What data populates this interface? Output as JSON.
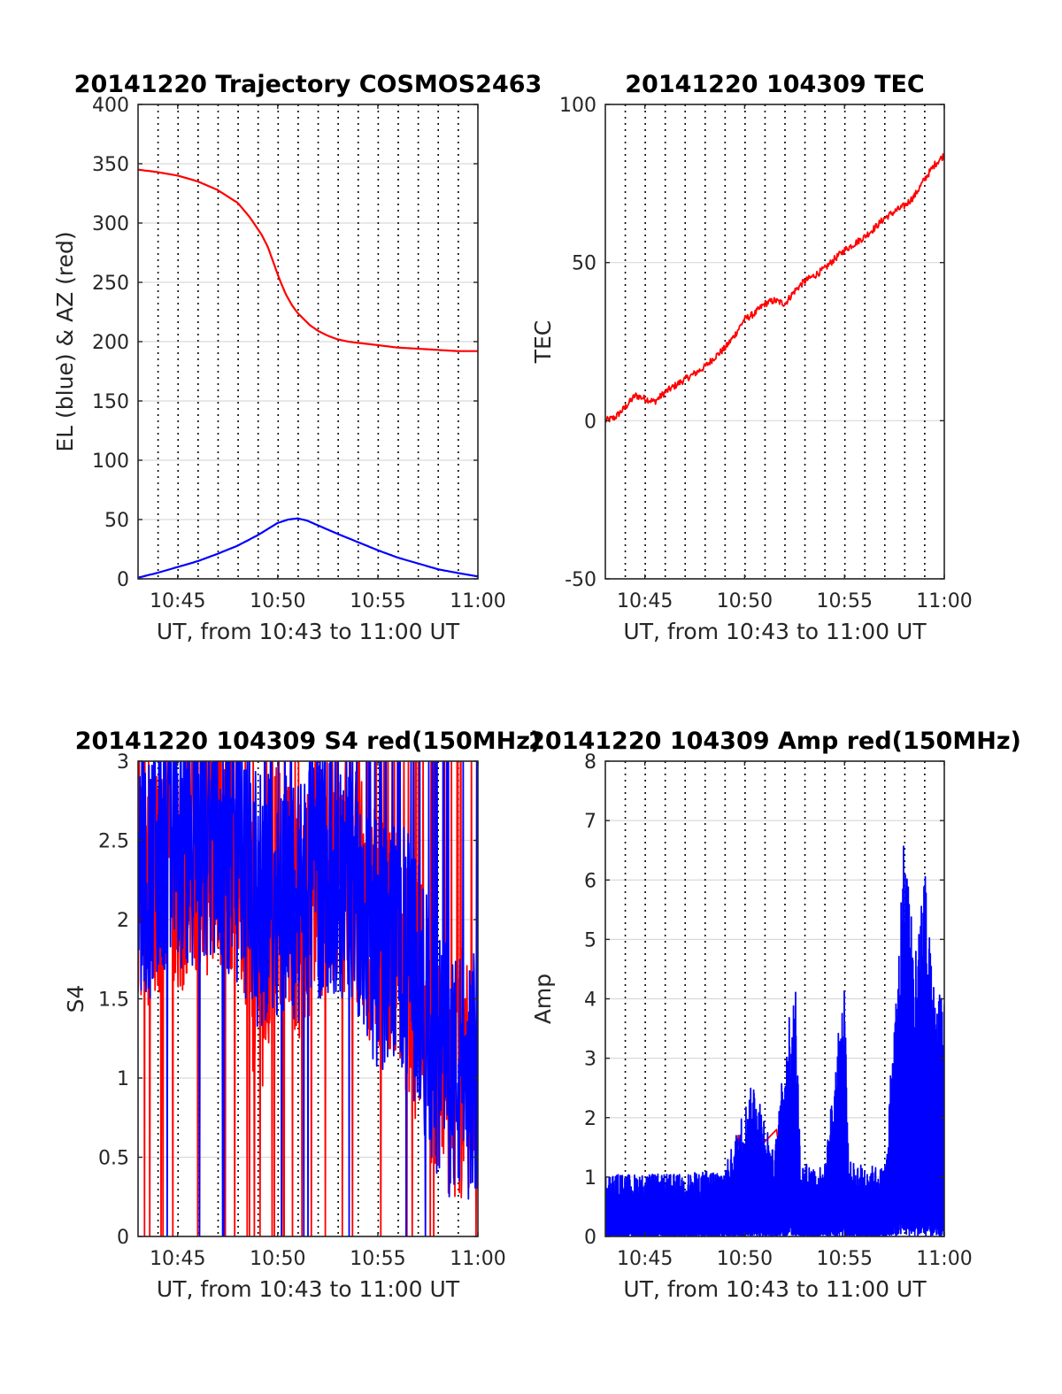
{
  "chart_data": [
    {
      "type": "line",
      "title": "20141220 Trajectory COSMOS2463",
      "xlabel": "UT, from 10:43 to 11:00 UT",
      "ylabel": "EL (blue) & AZ (red)",
      "xlim": [
        10.717,
        11.0
      ],
      "ylim": [
        0,
        400
      ],
      "yticks": [
        0,
        50,
        100,
        150,
        200,
        250,
        300,
        350,
        400
      ],
      "xticks": [
        10.75,
        10.8333,
        10.9167,
        11.0
      ],
      "xticklabels": [
        "10:45",
        "10:50",
        "10:55",
        "11:00"
      ],
      "grid": true,
      "series": [
        {
          "color": "#ff0000",
          "x": [
            10.717,
            10.733,
            10.75,
            10.767,
            10.783,
            10.8,
            10.81,
            10.82,
            10.825,
            10.83,
            10.835,
            10.84,
            10.845,
            10.85,
            10.855,
            10.86,
            10.867,
            10.875,
            10.883,
            10.892,
            10.9,
            10.917,
            10.933,
            10.95,
            10.967,
            10.983,
            11.0
          ],
          "values": [
            345,
            343,
            340,
            335,
            328,
            317,
            305,
            290,
            280,
            266,
            252,
            240,
            231,
            224,
            219,
            214,
            209,
            205,
            202,
            200,
            199,
            197,
            195,
            194,
            193,
            192,
            192
          ]
        },
        {
          "color": "#0000ff",
          "x": [
            10.717,
            10.733,
            10.75,
            10.767,
            10.783,
            10.8,
            10.817,
            10.825,
            10.833,
            10.842,
            10.85,
            10.858,
            10.867,
            10.883,
            10.9,
            10.917,
            10.933,
            10.95,
            10.967,
            10.983,
            11.0
          ],
          "values": [
            1,
            5,
            10,
            15,
            21,
            28,
            37,
            42,
            47,
            50,
            51,
            49,
            45,
            38,
            31,
            24,
            18,
            13,
            8,
            5,
            2
          ]
        }
      ]
    },
    {
      "type": "line",
      "title": "20141220 104309 TEC",
      "xlabel": "UT, from 10:43 to 11:00 UT",
      "ylabel": "TEC",
      "xlim": [
        10.717,
        11.0
      ],
      "ylim": [
        -50,
        100
      ],
      "yticks": [
        -50,
        0,
        50,
        100
      ],
      "xticks": [
        10.75,
        10.8333,
        10.9167,
        11.0
      ],
      "xticklabels": [
        "10:45",
        "10:50",
        "10:55",
        "11:00"
      ],
      "grid": true,
      "series": [
        {
          "color": "#ff0000",
          "x": [
            10.717,
            10.725,
            10.733,
            10.742,
            10.75,
            10.758,
            10.767,
            10.775,
            10.783,
            10.792,
            10.8,
            10.808,
            10.817,
            10.825,
            10.833,
            10.842,
            10.85,
            10.858,
            10.867,
            10.875,
            10.883,
            10.892,
            10.9,
            10.908,
            10.917,
            10.925,
            10.933,
            10.942,
            10.95,
            10.958,
            10.967,
            10.975,
            10.983,
            10.992,
            11.0
          ],
          "values": [
            0,
            1,
            4,
            8,
            7,
            6,
            9,
            11,
            13,
            15,
            17,
            20,
            23,
            27,
            32,
            34,
            37,
            38,
            37,
            41,
            44,
            46,
            48,
            51,
            54,
            56,
            58,
            61,
            64,
            66,
            68,
            71,
            76,
            81,
            84
          ]
        }
      ]
    },
    {
      "type": "line",
      "title": "20141220 104309 S4 red(150MHz)",
      "xlabel": "UT, from 10:43 to 11:00 UT",
      "ylabel": "S4",
      "xlim": [
        10.717,
        11.0
      ],
      "ylim": [
        0,
        3
      ],
      "yticks": [
        0,
        0.5,
        1,
        1.5,
        2,
        2.5,
        3
      ],
      "xticks": [
        10.75,
        10.8333,
        10.9167,
        11.0
      ],
      "xticklabels": [
        "10:45",
        "10:50",
        "10:55",
        "11:00"
      ],
      "grid": true,
      "series": [
        {
          "color": "#ff0000",
          "x": [
            10.717,
            10.733,
            10.75,
            10.767,
            10.783,
            10.8,
            10.817,
            10.833,
            10.85,
            10.867,
            10.883,
            10.9,
            10.917,
            10.933,
            10.95,
            10.967,
            10.983,
            11.0
          ],
          "values": [
            2.3,
            2.2,
            2.3,
            2.4,
            2.5,
            2.4,
            1.6,
            2.2,
            2.0,
            2.3,
            2.4,
            2.2,
            1.9,
            1.8,
            1.5,
            1.1,
            1.0,
            1.1
          ]
        },
        {
          "color": "#0000ff",
          "x": [
            10.717,
            10.733,
            10.75,
            10.767,
            10.783,
            10.8,
            10.817,
            10.833,
            10.85,
            10.867,
            10.883,
            10.9,
            10.917,
            10.933,
            10.95,
            10.967,
            10.983,
            11.0
          ],
          "values": [
            2.3,
            2.3,
            2.4,
            2.5,
            2.5,
            2.4,
            2.1,
            2.2,
            2.1,
            2.3,
            2.3,
            2.2,
            1.8,
            1.9,
            1.6,
            1.1,
            1.0,
            1.0
          ]
        }
      ]
    },
    {
      "type": "line",
      "title": "20141220 104309 Amp red(150MHz)",
      "xlabel": "UT, from 10:43 to 11:00 UT",
      "ylabel": "Amp",
      "xlim": [
        10.717,
        11.0
      ],
      "ylim": [
        0,
        8
      ],
      "yticks": [
        0,
        1,
        2,
        3,
        4,
        5,
        6,
        7,
        8
      ],
      "xticks": [
        10.75,
        10.8333,
        10.9167,
        11.0
      ],
      "xticklabels": [
        "10:45",
        "10:50",
        "10:55",
        "11:00"
      ],
      "grid": true,
      "series": [
        {
          "color": "#ff0000",
          "x": [
            10.825,
            10.828,
            10.831,
            10.86,
            10.863
          ],
          "values": [
            1.3,
            1.7,
            1.2,
            1.8,
            1.3
          ]
        },
        {
          "color": "#0000ff",
          "x": [
            10.717,
            10.75,
            10.783,
            10.817,
            10.83,
            10.842,
            10.858,
            10.875,
            10.88,
            10.9,
            10.917,
            10.92,
            10.95,
            10.96,
            10.967,
            10.975,
            10.983,
            10.99,
            11.0
          ],
          "values": [
            1.0,
            1.0,
            1.0,
            1.1,
            1.9,
            2.6,
            1.3,
            4.5,
            1.2,
            1.1,
            4.3,
            1.2,
            1.1,
            4.0,
            6.8,
            4.5,
            6.2,
            4.1,
            4.0
          ]
        }
      ]
    }
  ]
}
